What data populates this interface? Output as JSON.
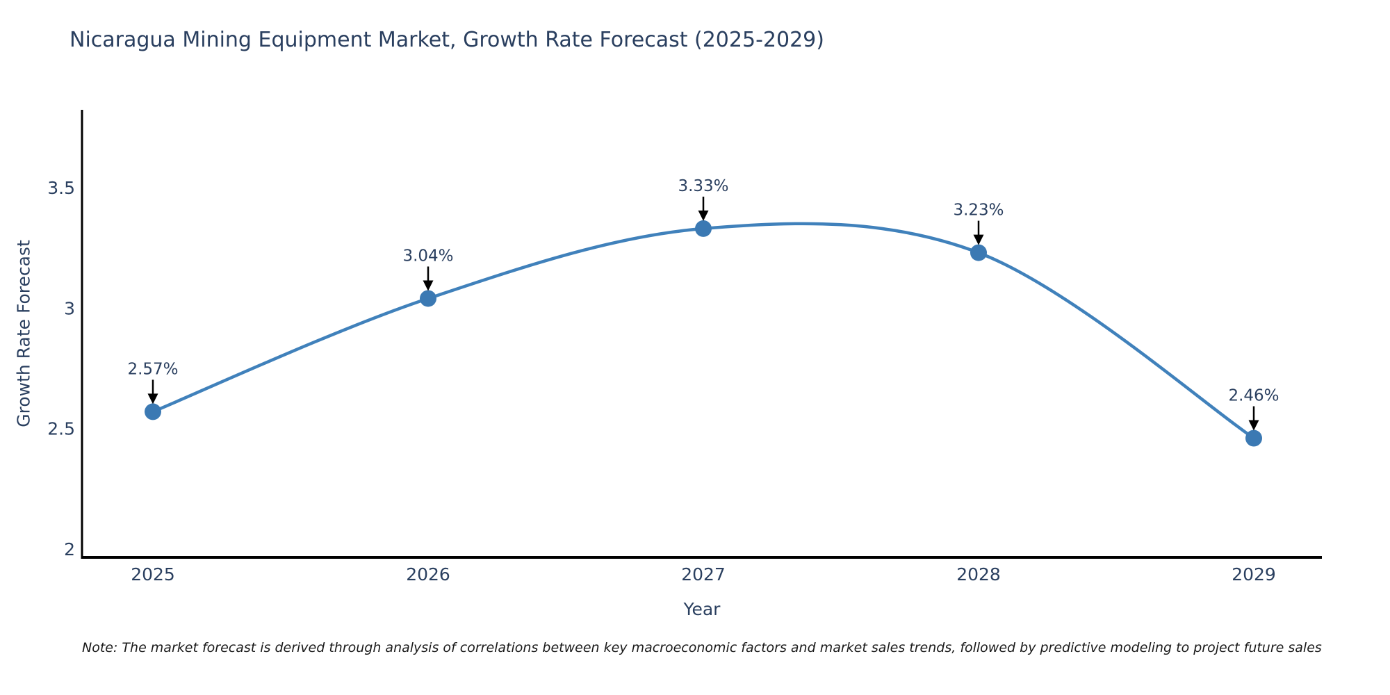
{
  "title": "Nicaragua Mining Equipment Market, Growth Rate Forecast (2025-2029)",
  "footnote": "Note: The market forecast is derived through analysis of correlations between key macroeconomic factors and market sales trends, followed by predictive modeling to project future sales",
  "chart_data": {
    "type": "line",
    "x": [
      2025,
      2026,
      2027,
      2028,
      2029
    ],
    "x_tick_labels": [
      "2025",
      "2026",
      "2027",
      "2028",
      "2029"
    ],
    "series": [
      {
        "name": "Growth Rate Forecast",
        "values": [
          2.57,
          3.04,
          3.33,
          3.23,
          2.46
        ]
      }
    ],
    "point_labels": [
      "2.57%",
      "3.04%",
      "3.33%",
      "3.23%",
      "2.46%"
    ],
    "title": "Nicaragua Mining Equipment Market, Growth Rate Forecast (2025-2029)",
    "xlabel": "Year",
    "ylabel": "Growth Rate Forecast",
    "y_ticks": [
      {
        "value": 2,
        "label": "2"
      },
      {
        "value": 2.5,
        "label": "2.5"
      },
      {
        "value": 3,
        "label": "3"
      },
      {
        "value": 3.5,
        "label": "3.5"
      }
    ],
    "ylim": [
      1.97,
      3.84
    ],
    "xlim_padding": "categorical, points at equal spacing",
    "grid": false,
    "legend_position": "none",
    "line_style": "spline-smoothed",
    "annotations": "each point labeled with percent value and a downward black arrow",
    "colors": {
      "line": "#4081bb",
      "marker": "#3b79b3",
      "axis": "#000000",
      "text": "#2a3f5f",
      "annotation_text": "#2a3f5f",
      "arrow": "#000000",
      "background": "#ffffff"
    }
  }
}
